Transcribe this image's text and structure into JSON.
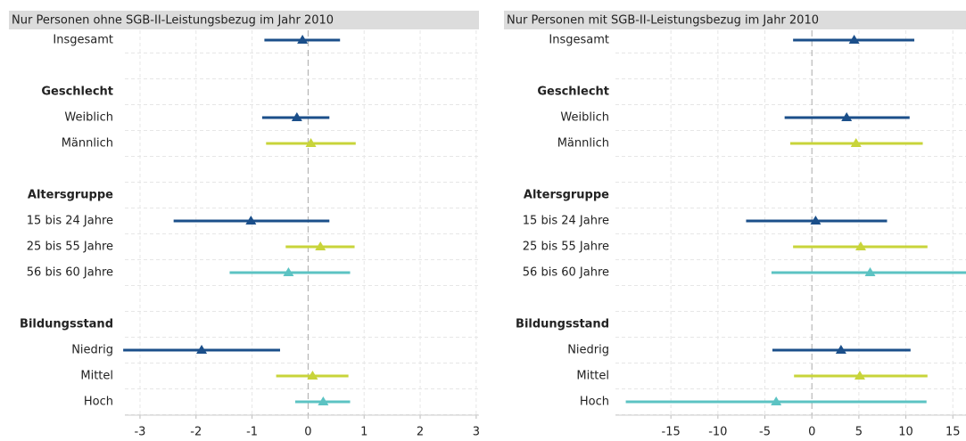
{
  "chart_data": [
    {
      "type": "errorbar",
      "title": "Nur Personen ohne SGB-II-Leistungsbezug im Jahr 2010",
      "xlim": [
        -3.27,
        3.05
      ],
      "xticks": [
        -3,
        -2,
        -1,
        0,
        1,
        2,
        3
      ],
      "grid": true,
      "groups": [
        {
          "name": null,
          "categories": [
            "Insgesamt"
          ],
          "values": [
            -0.1
          ],
          "lower": [
            -0.78
          ],
          "upper": [
            0.57
          ],
          "colors": [
            "#1b4f8a"
          ]
        },
        {
          "name": "Geschlecht",
          "categories": [
            "Weiblich",
            "Männlich"
          ],
          "values": [
            -0.2,
            0.05
          ],
          "lower": [
            -0.82,
            -0.75
          ],
          "upper": [
            0.38,
            0.85
          ],
          "colors": [
            "#1b4f8a",
            "#c8d43a"
          ]
        },
        {
          "name": "Altersgruppe",
          "categories": [
            "15 bis 24 Jahre",
            "25 bis 55 Jahre",
            "56 bis 60 Jahre"
          ],
          "values": [
            -1.02,
            0.22,
            -0.35
          ],
          "lower": [
            -2.4,
            -0.4,
            -1.4
          ],
          "upper": [
            0.38,
            0.83,
            0.75
          ],
          "colors": [
            "#1b4f8a",
            "#c8d43a",
            "#5cc3c3"
          ]
        },
        {
          "name": "Bildungsstand",
          "categories": [
            "Niedrig",
            "Mittel",
            "Hoch"
          ],
          "values": [
            -1.9,
            0.08,
            0.27
          ],
          "lower": [
            -3.3,
            -0.57,
            -0.23
          ],
          "upper": [
            -0.5,
            0.72,
            0.75
          ],
          "colors": [
            "#1b4f8a",
            "#c8d43a",
            "#5cc3c3"
          ]
        }
      ]
    },
    {
      "type": "errorbar",
      "title": "Nur Personen mit SGB-II-Leistungsbezug im Jahr 2010",
      "xlim": [
        -20.9,
        16.4
      ],
      "xticks": [
        -15,
        -10,
        -5,
        0,
        5,
        10,
        15
      ],
      "grid": true,
      "groups": [
        {
          "name": null,
          "categories": [
            "Insgesamt"
          ],
          "values": [
            4.5
          ],
          "lower": [
            -2
          ],
          "upper": [
            10.9
          ],
          "colors": [
            "#1b4f8a"
          ]
        },
        {
          "name": "Geschlecht",
          "categories": [
            "Weiblich",
            "Männlich"
          ],
          "values": [
            3.7,
            4.7
          ],
          "lower": [
            -2.9,
            -2.3
          ],
          "upper": [
            10.4,
            11.8
          ],
          "colors": [
            "#1b4f8a",
            "#c8d43a"
          ]
        },
        {
          "name": "Altersgruppe",
          "categories": [
            "15 bis 24 Jahre",
            "25 bis 55 Jahre",
            "56 bis 60 Jahre"
          ],
          "values": [
            0.4,
            5.2,
            6.2
          ],
          "lower": [
            -7.0,
            -2,
            -4.3
          ],
          "upper": [
            8.0,
            12.3,
            16.4
          ],
          "colors": [
            "#1b4f8a",
            "#c8d43a",
            "#5cc3c3"
          ]
        },
        {
          "name": "Bildungsstand",
          "categories": [
            "Niedrig",
            "Mittel",
            "Hoch"
          ],
          "values": [
            3.1,
            5.1,
            -3.8
          ],
          "lower": [
            -4.2,
            -1.9,
            -19.8
          ],
          "upper": [
            10.5,
            12.3,
            12.2
          ],
          "colors": [
            "#1b4f8a",
            "#c8d43a",
            "#5cc3c3"
          ]
        }
      ]
    }
  ]
}
